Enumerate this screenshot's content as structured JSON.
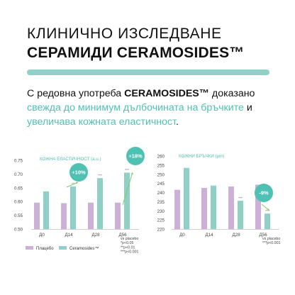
{
  "heading": {
    "line1": "КЛИНИЧНО ИЗСЛЕДВАНЕ",
    "line2": "СЕРАМИДИ CERAMOSIDES™"
  },
  "body_text": {
    "p1": "С редовна употреба ",
    "brand": "CERAMOSIDES™",
    "p2": " доказано ",
    "teal1": "свежда до минимум дълбочината на бръчките",
    "p3": " и ",
    "teal2": "увеличава кожната еластичност",
    "p4": "."
  },
  "colors": {
    "placebo": "#cdb0d6",
    "ceramosides": "#8fd1c6",
    "accent": "#4fc1b3",
    "arrow": "#7ccd6c"
  },
  "chart_data": [
    {
      "type": "bar",
      "title": "КОЖНА ЕЛАСТИЧНОСТ (a.u.)",
      "categories": [
        "Д0",
        "Д14",
        "Д28",
        "Д56"
      ],
      "series": [
        {
          "name": "Плацебо",
          "values": [
            0.596,
            0.594,
            0.596,
            0.596
          ]
        },
        {
          "name": "Ceramosides™",
          "values": [
            0.637,
            0.655,
            0.685,
            0.705
          ]
        }
      ],
      "yticks": [
        "0.50",
        "0.55",
        "0.60",
        "0.65",
        "0.70",
        "0.75"
      ],
      "ylim": [
        0.5,
        0.75
      ],
      "significance": [
        "",
        "**",
        "***",
        "***"
      ],
      "callouts": [
        {
          "label": "+10%",
          "category": "Д14"
        },
        {
          "label": "+18%",
          "category": "Д56"
        }
      ]
    },
    {
      "type": "bar",
      "title": "КОЖНИ БРЪЧКИ (µm)",
      "categories": [
        "Д0",
        "Д14",
        "Д28",
        "Д56"
      ],
      "series": [
        {
          "name": "Плацебо",
          "values": [
            241.5,
            242.5,
            243.3,
            244.3
          ]
        },
        {
          "name": "Ceramosides™",
          "values": [
            253.5,
            243.8,
            235.5,
            228.5
          ]
        }
      ],
      "yticks": [
        "220",
        "225",
        "230",
        "235",
        "240",
        "245",
        "250",
        "255",
        "260"
      ],
      "ylim": [
        220,
        260
      ],
      "significance": [
        "",
        "",
        "***",
        "***"
      ],
      "callouts": [
        {
          "label": "-9%",
          "category": "Д56"
        }
      ]
    }
  ],
  "legend": {
    "placebo": "Плацебо",
    "ceramosides": "Ceramosides™"
  },
  "notes_left": [
    "vs placebo",
    "*p<0.05",
    "**p<0.01",
    "***p<0.001"
  ],
  "notes_right": [
    "vs placebo",
    "***p<0.001"
  ]
}
